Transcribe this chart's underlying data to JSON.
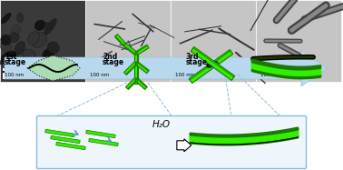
{
  "bg_color": "#ffffff",
  "panel_colors": [
    "#3a3a3a",
    "#c5c5c5",
    "#c5c5c5",
    "#c5c5c5"
  ],
  "scale_bar_label": "100 nm",
  "stage_labels": [
    "1st\nstage",
    "2nd\nstage",
    "3rd\nstage"
  ],
  "h2o_label": "H₂O",
  "arrow_color": "#b8d8ee",
  "green_dark": "#1a7a00",
  "green_bright": "#33ee00",
  "green_mid": "#55cc00",
  "green_light": "#aaffaa",
  "inset_border_color": "#88bbdd",
  "inset_bg": "#eef6fb",
  "blue_arrow": "#5599cc"
}
